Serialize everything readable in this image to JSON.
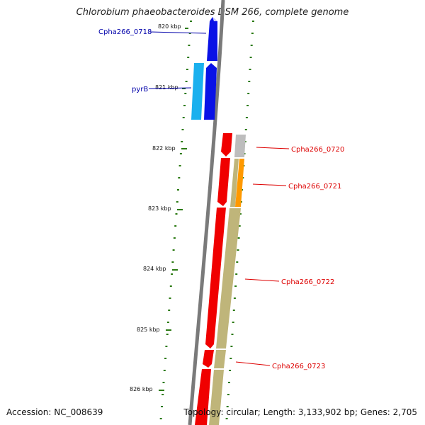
{
  "title": "Chlorobium phaeobacteroides DSM 266, complete genome",
  "accession": "Accession: NC_008639",
  "topology": "Topology: circular; Length: 3,133,902 bp; Genes: 2,705",
  "colors": {
    "backbone": "#7a7a7a",
    "tick": "#2b7a12",
    "blue_gene": "#0a12e6",
    "cyan_gene": "#1ab0ee",
    "red_gene": "#f00000",
    "grey_gene": "#bdbdbd",
    "orange_gene": "#ff9900",
    "khaki_gene": "#bfb57a",
    "blue_label": "#0000aa",
    "red_label": "#dd0000"
  },
  "scale_labels": [
    "820 kbp",
    "821 kbp",
    "822 kbp",
    "823 kbp",
    "824 kbp",
    "825 kbp",
    "826 kbp"
  ],
  "genes": [
    {
      "name": "Cpha266_0718",
      "strand": "forward",
      "color": "blue_gene"
    },
    {
      "name": "pyrB",
      "strand": "forward",
      "color": "blue_gene"
    },
    {
      "name": "Cpha266_0720",
      "strand": "reverse",
      "color": "red_gene"
    },
    {
      "name": "Cpha266_0721",
      "strand": "reverse",
      "color": "red_gene"
    },
    {
      "name": "Cpha266_0722",
      "strand": "reverse",
      "color": "red_gene"
    },
    {
      "name": "Cpha266_0723",
      "strand": "reverse",
      "color": "red_gene"
    }
  ],
  "labels": {
    "g0718": "Cpha266_0718",
    "pyrB": "pyrB",
    "g0720": "Cpha266_0720",
    "g0721": "Cpha266_0721",
    "g0722": "Cpha266_0722",
    "g0723": "Cpha266_0723"
  }
}
